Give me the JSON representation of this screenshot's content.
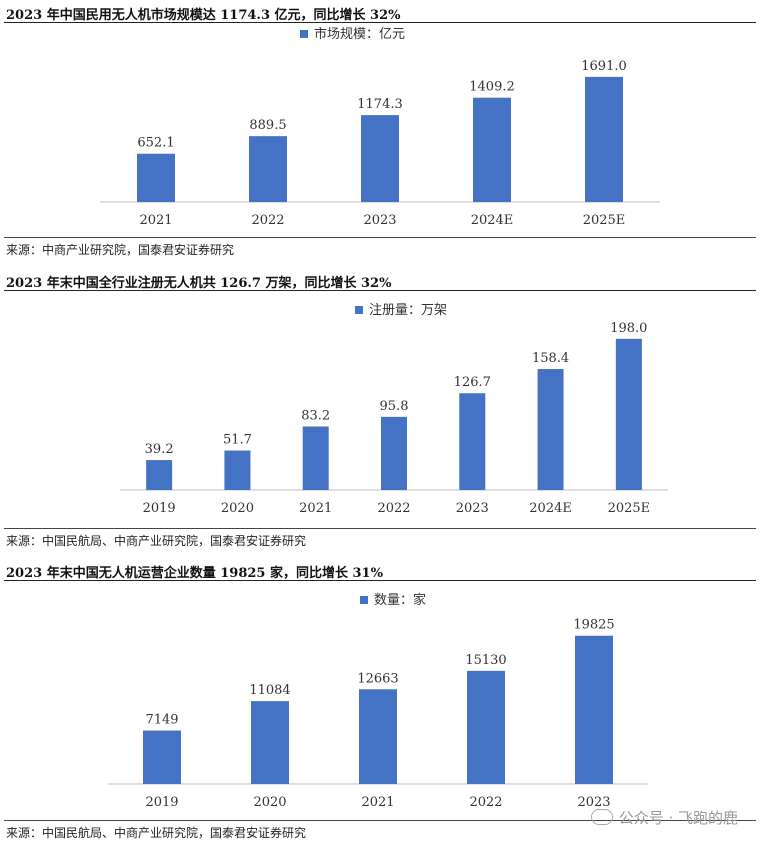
{
  "chart_data": [
    {
      "type": "bar",
      "title": "2023 年中国民用无人机市场规模达 1174.3 亿元，同比增长 32%",
      "legend": "市场规模：亿元",
      "legend_position": "top-center",
      "categories": [
        "2021",
        "2022",
        "2023",
        "2024E",
        "2025E"
      ],
      "values": [
        652.1,
        889.5,
        1174.3,
        1409.2,
        1691.0
      ],
      "labels": [
        "652.1",
        "889.5",
        "1174.3",
        "1409.2",
        "1691.0"
      ],
      "ylim": [
        0,
        2000
      ],
      "grid": false,
      "color": "#4472c4",
      "source": "来源：中商产业研究院，国泰君安证券研究"
    },
    {
      "type": "bar",
      "title": "2023 年末中国全行业注册无人机共 126.7 万架，同比增长 32%",
      "legend": "注册量：万架",
      "legend_position": "top-center",
      "categories": [
        "2019",
        "2020",
        "2021",
        "2022",
        "2023",
        "2024E",
        "2025E"
      ],
      "values": [
        39.2,
        51.7,
        83.2,
        95.8,
        126.7,
        158.4,
        198.0
      ],
      "labels": [
        "39.2",
        "51.7",
        "83.2",
        "95.8",
        "126.7",
        "158.4",
        "198.0"
      ],
      "ylim": [
        0,
        220
      ],
      "grid": false,
      "color": "#4472c4",
      "source": "来源：中国民航局、中商产业研究院，国泰君安证券研究"
    },
    {
      "type": "bar",
      "title": "2023 年末中国无人机运营企业数量 19825 家，同比增长 31%",
      "legend": "数量：家",
      "legend_position": "top-center",
      "categories": [
        "2019",
        "2020",
        "2021",
        "2022",
        "2023"
      ],
      "values": [
        7149,
        11084,
        12663,
        15130,
        19825
      ],
      "labels": [
        "7149",
        "11084",
        "12663",
        "15130",
        "19825"
      ],
      "ylim": [
        0,
        23000
      ],
      "grid": false,
      "color": "#4472c4",
      "source": "来源：中国民航局、中商产业研究院，国泰君安证券研究"
    }
  ],
  "watermark": "公众号 · 飞跑的鹿"
}
